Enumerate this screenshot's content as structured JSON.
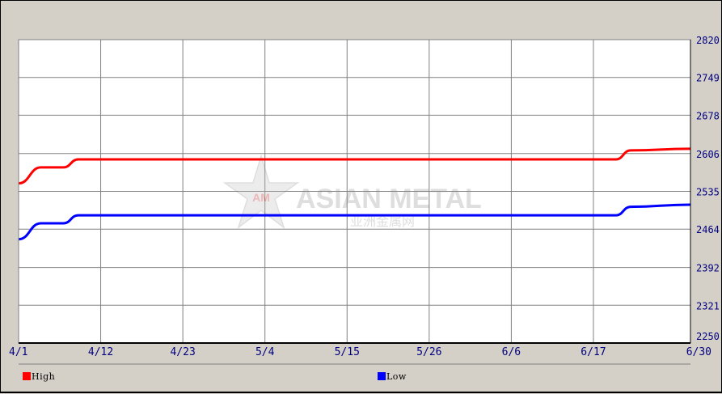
{
  "chart_data": {
    "type": "line",
    "x_labels": [
      "4/1",
      "4/12",
      "4/23",
      "5/4",
      "5/15",
      "5/26",
      "6/6",
      "6/17",
      "6/30"
    ],
    "y_ticks": [
      "2820",
      "2749",
      "2678",
      "2606",
      "2535",
      "2464",
      "2392",
      "2321",
      "2250"
    ],
    "ylim": [
      2250,
      2820
    ],
    "grid": true,
    "series": [
      {
        "name": "High",
        "color": "#ff0000",
        "points": [
          {
            "x": "4/1",
            "y": 2550
          },
          {
            "x": "4/4",
            "y": 2580
          },
          {
            "x": "4/7",
            "y": 2580
          },
          {
            "x": "4/9",
            "y": 2595
          },
          {
            "x": "6/20",
            "y": 2595
          },
          {
            "x": "6/22",
            "y": 2612
          },
          {
            "x": "6/30",
            "y": 2615
          }
        ]
      },
      {
        "name": "Low",
        "color": "#0000ff",
        "points": [
          {
            "x": "4/1",
            "y": 2445
          },
          {
            "x": "4/4",
            "y": 2475
          },
          {
            "x": "4/7",
            "y": 2475
          },
          {
            "x": "4/9",
            "y": 2490
          },
          {
            "x": "6/20",
            "y": 2490
          },
          {
            "x": "6/22",
            "y": 2506
          },
          {
            "x": "6/30",
            "y": 2510
          }
        ]
      }
    ],
    "legend_placement": "bottom"
  },
  "watermark": {
    "text_en": "ASIAN METAL",
    "text_cn": "亚洲金属网",
    "logo_text": "AM"
  },
  "colors": {
    "background": "#d4d0c8",
    "plot_bg": "#ffffff",
    "grid": "#808080",
    "axis_label": "#000080"
  }
}
